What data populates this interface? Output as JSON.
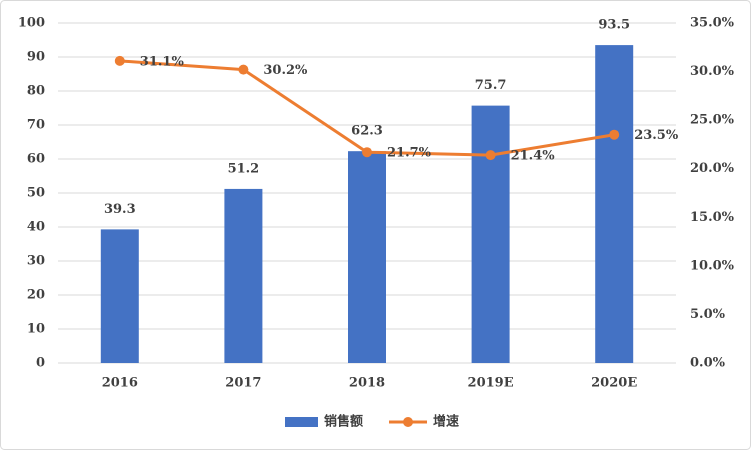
{
  "chart_data": {
    "type": "bar-line",
    "categories": [
      "2016",
      "2017",
      "2018",
      "2019E",
      "2020E"
    ],
    "series": [
      {
        "name": "销售额",
        "type": "bar",
        "color": "#4472c4",
        "values": [
          39.3,
          51.2,
          62.3,
          75.7,
          93.5
        ]
      },
      {
        "name": "增速",
        "type": "line",
        "axis": "y2",
        "color": "#ed7d31",
        "values": [
          31.1,
          30.2,
          21.7,
          21.4,
          23.5
        ],
        "value_labels": [
          "31.1%",
          "30.2%",
          "21.7%",
          "21.4%",
          "23.5%"
        ]
      }
    ],
    "ylim": [
      0,
      100
    ],
    "yticks": [
      0,
      10,
      20,
      30,
      40,
      50,
      60,
      70,
      80,
      90,
      100
    ],
    "y2lim": [
      0,
      35
    ],
    "y2ticks": [
      {
        "value": 0,
        "label": "0.0%"
      },
      {
        "value": 5,
        "label": "5.0%"
      },
      {
        "value": 10,
        "label": "10.0%"
      },
      {
        "value": 15,
        "label": "15.0%"
      },
      {
        "value": 20,
        "label": "20.0%"
      },
      {
        "value": 25,
        "label": "25.0%"
      },
      {
        "value": 30,
        "label": "30.0%"
      },
      {
        "value": 35,
        "label": "35.0%"
      }
    ],
    "grid": true,
    "legend": "bottom"
  }
}
